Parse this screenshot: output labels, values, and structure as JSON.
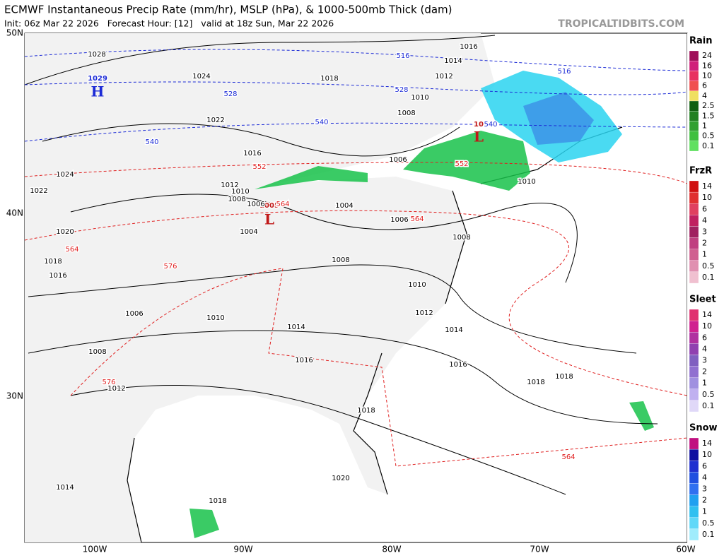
{
  "header": {
    "title": "ECMWF Instantaneous Precip Rate (mm/hr), MSLP (hPa), & 1000-500mb Thick (dam)",
    "subtitle": "Init: 06z Mar 22 2026   Forecast Hour: [12]   valid at 18z Sun, Mar 22 2026",
    "watermark": "TROPICALTIDBITS.COM"
  },
  "axes": {
    "lat": [
      "50N",
      "40N",
      "30N"
    ],
    "lon": [
      "100W",
      "90W",
      "80W",
      "70W",
      "60W"
    ]
  },
  "centers": [
    {
      "pressure": "1029",
      "symbol": "H"
    },
    {
      "pressure": "1005",
      "symbol": "L"
    },
    {
      "pressure": "10",
      "symbol": "L"
    }
  ],
  "isobar_labels": [
    "1028",
    "1024",
    "1022",
    "1016",
    "1024",
    "1022",
    "1020",
    "1018",
    "1016",
    "1012",
    "1010",
    "1008",
    "1006",
    "1004",
    "1004",
    "1006",
    "1008",
    "1008",
    "1010",
    "1012",
    "1014",
    "1016",
    "1018",
    "1018",
    "1018",
    "1020",
    "1016",
    "1014",
    "1010",
    "1006",
    "1008",
    "1012",
    "1014",
    "1018",
    "1018",
    "1014",
    "1016",
    "1012",
    "1010",
    "1008",
    "1006",
    "1010"
  ],
  "thickness_labels_blue": [
    "516",
    "516",
    "528",
    "528",
    "540",
    "540",
    "540"
  ],
  "thickness_labels_red": [
    "552",
    "552",
    "564",
    "564",
    "564",
    "576",
    "576",
    "564"
  ],
  "legends": [
    {
      "title": "Rain",
      "ticks": [
        "24",
        "16",
        "10",
        "6",
        "4",
        "2.5",
        "1.5",
        "1",
        "0.5",
        "0.1"
      ]
    },
    {
      "title": "FrzR",
      "ticks": [
        "14",
        "10",
        "6",
        "4",
        "3",
        "2",
        "1",
        "0.5",
        "0.1"
      ]
    },
    {
      "title": "Sleet",
      "ticks": [
        "14",
        "10",
        "6",
        "4",
        "3",
        "2",
        "1",
        "0.5",
        "0.1"
      ]
    },
    {
      "title": "Snow",
      "ticks": [
        "14",
        "10",
        "6",
        "4",
        "3",
        "2",
        "1",
        "0.5",
        "0.1"
      ]
    }
  ]
}
